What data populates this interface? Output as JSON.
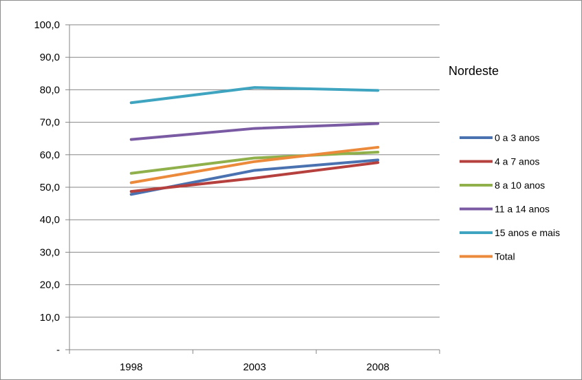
{
  "chart_data": {
    "type": "line",
    "title": "Nordeste",
    "categories": [
      "1998",
      "2003",
      "2008"
    ],
    "ylim": [
      0,
      100
    ],
    "y_ticks": [
      "-",
      "10,0",
      "20,0",
      "30,0",
      "40,0",
      "50,0",
      "60,0",
      "70,0",
      "80,0",
      "90,0",
      "100,0"
    ],
    "y_tick_values": [
      0,
      10,
      20,
      30,
      40,
      50,
      60,
      70,
      80,
      90,
      100
    ],
    "grid": "horizontal",
    "legend_position": "right",
    "series": [
      {
        "name": "0 a 3 anos",
        "color": "#4a72b0",
        "values": [
          47.8,
          55.2,
          58.4
        ]
      },
      {
        "name": "4 a 7 anos",
        "color": "#b5403d",
        "values": [
          48.7,
          52.8,
          57.6
        ]
      },
      {
        "name": "8 a 10 anos",
        "color": "#8fb04a",
        "values": [
          54.3,
          59.0,
          60.8
        ]
      },
      {
        "name": "11 a 14 anos",
        "color": "#7a5ba3",
        "values": [
          64.7,
          68.1,
          69.6
        ]
      },
      {
        "name": "15 anos e mais",
        "color": "#3fa4c0",
        "values": [
          76.0,
          80.7,
          79.8
        ]
      },
      {
        "name": "Total",
        "color": "#ec8a3c",
        "values": [
          51.4,
          57.9,
          62.3
        ]
      }
    ]
  }
}
